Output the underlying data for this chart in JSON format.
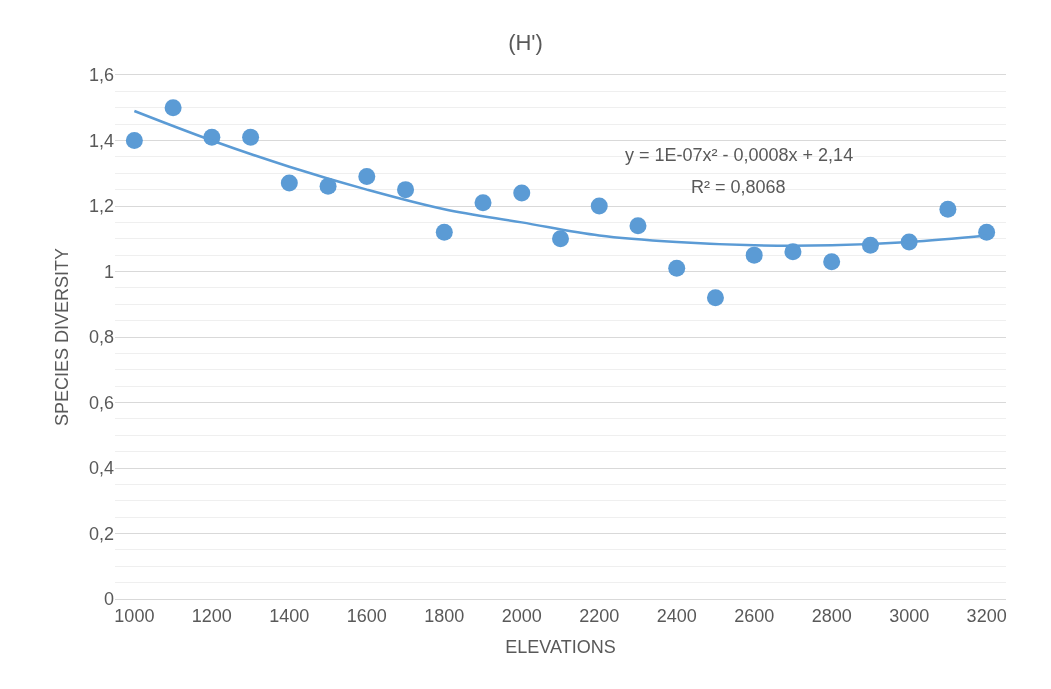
{
  "chart_data": {
    "type": "scatter",
    "title": "(H')",
    "xlabel": "ELEVATIONS",
    "ylabel": "SPECIES DIVERSITY",
    "xlim": [
      950,
      3250
    ],
    "xticks": [
      1000,
      1200,
      1400,
      1600,
      1800,
      2000,
      2200,
      2400,
      2600,
      2800,
      3000,
      3200
    ],
    "ylim": [
      0,
      1.6
    ],
    "yticks": [
      0,
      {
        "value": 0.2,
        "label": "0,2"
      },
      {
        "value": 0.4,
        "label": "0,4"
      },
      {
        "value": 0.6,
        "label": "0,6"
      },
      {
        "value": 0.8,
        "label": "0,8"
      },
      1,
      {
        "value": 1.2,
        "label": "1,2"
      },
      {
        "value": 1.4,
        "label": "1,4"
      },
      {
        "value": 1.6,
        "label": "1,6"
      }
    ],
    "grid": "y",
    "series": [
      {
        "color": "#5b9bd5",
        "marker": "circle",
        "x": [
          1000,
          1100,
          1200,
          1300,
          1400,
          1500,
          1600,
          1700,
          1800,
          1900,
          2000,
          2100,
          2200,
          2300,
          2400,
          2500,
          2600,
          2700,
          2800,
          2900,
          3000,
          3100,
          3200
        ],
        "values": [
          1.4,
          1.5,
          1.41,
          1.41,
          1.27,
          1.26,
          1.29,
          1.25,
          1.12,
          1.21,
          1.24,
          1.1,
          1.2,
          1.14,
          1.01,
          0.92,
          1.05,
          1.06,
          1.03,
          1.08,
          1.09,
          1.19,
          1.12
        ]
      },
      {
        "type": "line",
        "color": "#5b9bd5",
        "line_style": "solid",
        "marker": "none",
        "x": [
          1000,
          1200,
          1400,
          1600,
          1800,
          2000,
          2200,
          2400,
          2600,
          2800,
          3000,
          3200
        ],
        "values": [
          1.49,
          1.4,
          1.32,
          1.25,
          1.19,
          1.15,
          1.11,
          1.09,
          1.08,
          1.08,
          1.09,
          1.11
        ]
      }
    ],
    "annotations": [
      "y = 1E-07x² - 0,0008x + 2,14",
      "R² = 0,8068"
    ]
  }
}
